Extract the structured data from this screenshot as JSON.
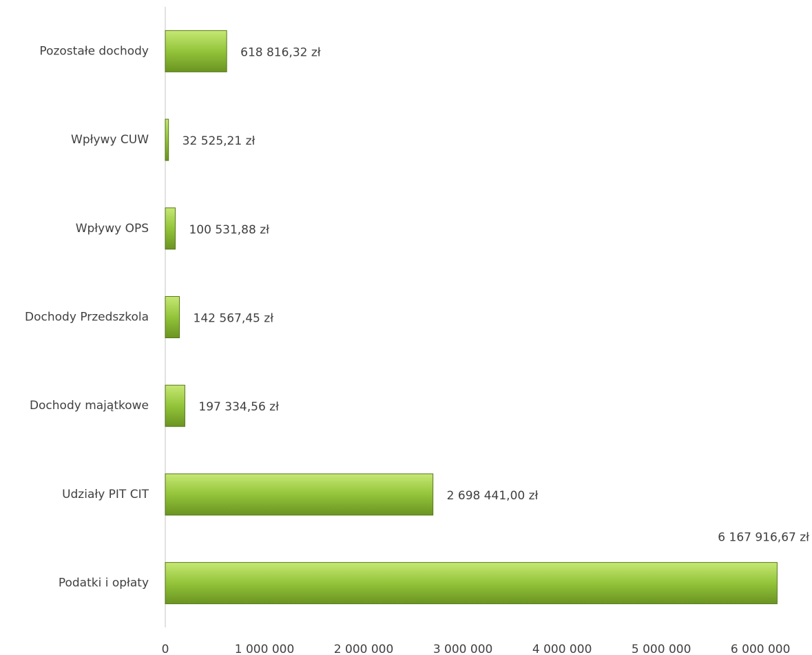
{
  "chart_data": {
    "type": "bar",
    "orientation": "horizontal",
    "categories": [
      "Pozostałe dochody",
      "Wpływy CUW",
      "Wpływy OPS",
      "Dochody Przedszkola",
      "Dochody majątkowe",
      "Udziały PIT CIT",
      "Podatki i opłaty"
    ],
    "values": [
      618816.32,
      32525.21,
      100531.88,
      142567.45,
      197334.56,
      2698441.0,
      6167916.67
    ],
    "value_labels": [
      "618 816,32 zł",
      "32 525,21 zł",
      "100 531,88 zł",
      "142 567,45 zł",
      "197 334,56 zł",
      "2 698 441,00 zł",
      "6 167 916,67 zł"
    ],
    "color": "#8cbf30",
    "xlim": [
      0,
      6200000
    ],
    "xticks": [
      0,
      {
        "value": 1000000,
        "label": "1 000 000"
      },
      {
        "value": 2000000,
        "label": "2 000 000"
      },
      {
        "value": 3000000,
        "label": "3 000 000"
      },
      {
        "value": 4000000,
        "label": "4 000 000"
      },
      {
        "value": 5000000,
        "label": "5 000 000"
      },
      {
        "value": 6000000,
        "label": "6 000 000"
      }
    ],
    "grid": false
  }
}
